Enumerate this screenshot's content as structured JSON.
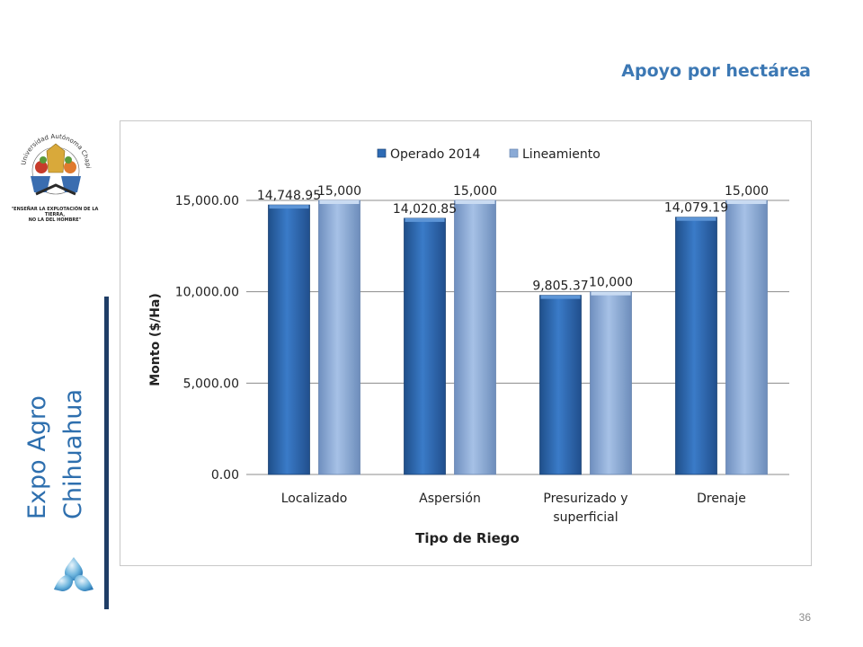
{
  "page": {
    "title": "Apoyo por hectárea",
    "side_text_line1": "Expo Agro",
    "side_text_line2": "Chihuahua",
    "page_number": "36",
    "logo_ring_text": "Universidad Autónoma Chapingo",
    "logo_motto_line1": "\"ENSEÑAR LA EXPLOTACIÓN DE LA TIERRA,",
    "logo_motto_line2": "NO LA DEL HOMBRE\""
  },
  "colors": {
    "title": "#3c78b4",
    "series_1": "#2e6bb5",
    "series_2": "#8aaad6",
    "side_bar": "#1f3d66"
  },
  "chart_data": {
    "type": "bar",
    "title": "",
    "xlabel": "Tipo de Riego",
    "ylabel": "Monto ($/Ha)",
    "categories": [
      [
        "Localizado"
      ],
      [
        "Aspersión"
      ],
      [
        "Presurizado y",
        "superficial"
      ],
      [
        "Drenaje"
      ]
    ],
    "series": [
      {
        "name": "Operado 2014",
        "values": [
          14748.95,
          14020.85,
          9805.37,
          14079.19
        ],
        "labels": [
          "14,748.95",
          "14,020.85",
          "9,805.37",
          "14,079.19"
        ],
        "color": "#2e6bb5"
      },
      {
        "name": "Lineamiento",
        "values": [
          15000,
          15000,
          10000,
          15000
        ],
        "labels": [
          "15,000",
          "15,000",
          "10,000",
          "15,000"
        ],
        "color": "#8aaad6"
      }
    ],
    "ylim": [
      0,
      15000
    ],
    "yticks": [
      0,
      5000,
      10000,
      15000
    ],
    "ytick_labels": [
      "0.00",
      "5,000.00",
      "10,000.00",
      "15,000.00"
    ],
    "grid": true,
    "legend_position": "top"
  }
}
